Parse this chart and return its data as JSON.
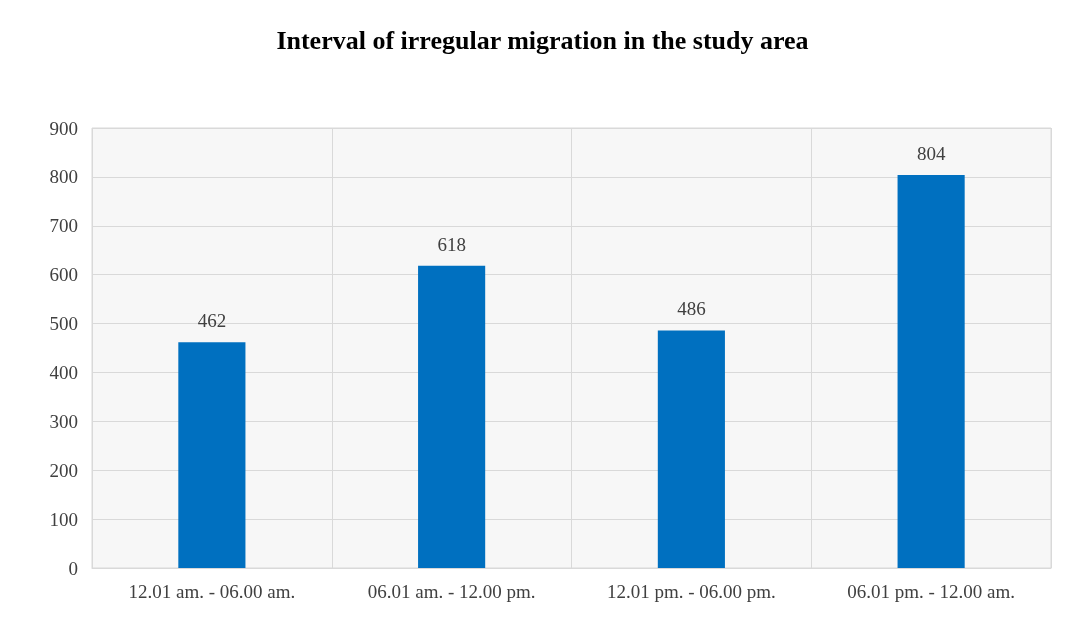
{
  "chart_data": {
    "type": "bar",
    "title": "Interval of irregular migration in the study area",
    "categories": [
      "12.01 am. - 06.00 am.",
      "06.01 am. - 12.00 pm.",
      "12.01 pm. - 06.00 pm.",
      "06.01 pm. - 12.00 am."
    ],
    "values": [
      462,
      618,
      486,
      804
    ],
    "color": "#0070c0",
    "ylim": [
      0,
      900
    ],
    "yticks": [
      0,
      100,
      200,
      300,
      400,
      500,
      600,
      700,
      800,
      900
    ],
    "grid": true,
    "data_labels": true
  }
}
